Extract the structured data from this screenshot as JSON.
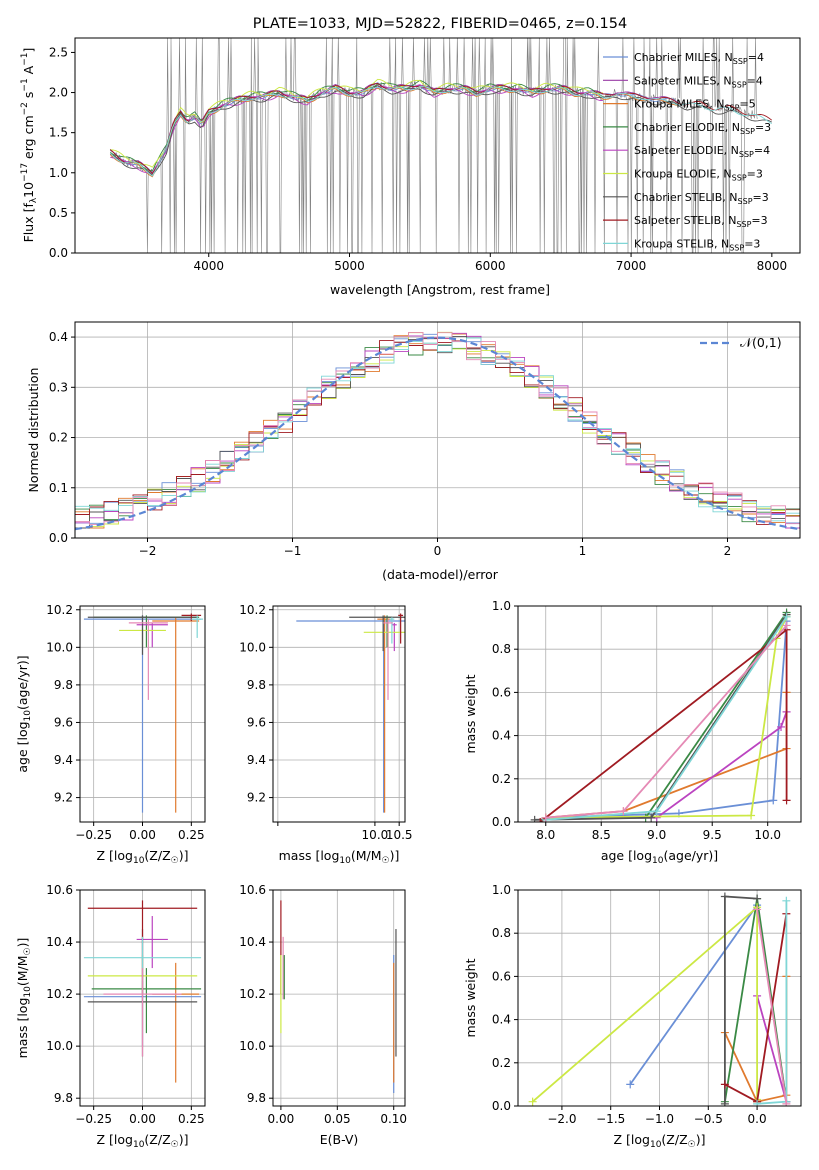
{
  "figure": {
    "title": "PLATE=1033, MJD=52822, FIBERID=0465, z=0.154"
  },
  "chart_data": [
    {
      "id": "spectrum",
      "type": "line",
      "title": "PLATE=1033, MJD=52822, FIBERID=0465, z=0.154",
      "xlabel": "wavelength [Angstrom, rest frame]",
      "ylabel_parts": [
        "Flux [f",
        "λ",
        "10",
        "−17",
        " erg cm",
        "−2",
        " s",
        "−1",
        " A",
        "−1",
        "]"
      ],
      "xlim": [
        3050,
        8200
      ],
      "ylim": [
        0,
        2.68
      ],
      "xticks": [
        4000,
        5000,
        6000,
        7000,
        8000
      ],
      "yticks": [
        0.0,
        0.5,
        1.0,
        1.5,
        2.0,
        2.5
      ],
      "grid": false,
      "legend_position": "top-right",
      "observed_color": "#808080",
      "model_points_x": [
        3300,
        3400,
        3500,
        3550,
        3600,
        3650,
        3700,
        3750,
        3800,
        3850,
        3900,
        3950,
        4000,
        4100,
        4200,
        4300,
        4400,
        4500,
        4600,
        4700,
        4800,
        4900,
        5000,
        5100,
        5200,
        5300,
        5400,
        5500,
        5600,
        5700,
        5800,
        5900,
        6000,
        6100,
        6200,
        6300,
        6400,
        6500,
        6600,
        6700,
        6800,
        6900,
        7000,
        7100,
        7200,
        7300,
        7400,
        7500,
        7600,
        7700,
        7800,
        7900,
        8000
      ],
      "model_base_y": [
        1.25,
        1.15,
        1.1,
        1.05,
        1.0,
        1.15,
        1.3,
        1.6,
        1.75,
        1.65,
        1.7,
        1.6,
        1.75,
        1.85,
        1.9,
        1.95,
        1.95,
        2.0,
        1.95,
        1.9,
        2.0,
        2.05,
        2.0,
        2.0,
        2.1,
        2.05,
        2.05,
        2.1,
        2.0,
        2.05,
        2.05,
        2.0,
        2.05,
        2.05,
        2.05,
        2.0,
        2.05,
        2.05,
        2.0,
        2.0,
        1.95,
        2.0,
        1.95,
        1.95,
        1.9,
        1.9,
        1.85,
        1.85,
        1.8,
        1.8,
        1.75,
        1.7,
        1.65
      ],
      "series": [
        {
          "name": "Chabrier MILES",
          "nssp": "4",
          "color": "#6a8fd6",
          "range": [
            3300,
            7350
          ],
          "offset": 0.0
        },
        {
          "name": "Salpeter MILES",
          "nssp": "4",
          "color": "#9a3da6",
          "range": [
            3300,
            7350
          ],
          "offset": 0.02
        },
        {
          "name": "Kroupa MILES",
          "nssp": "5",
          "color": "#e07a2e",
          "range": [
            3300,
            7350
          ],
          "offset": -0.02
        },
        {
          "name": "Chabrier ELODIE",
          "nssp": "3",
          "color": "#3a8a45",
          "range": [
            3300,
            6800
          ],
          "offset": 0.03
        },
        {
          "name": "Salpeter ELODIE",
          "nssp": "4",
          "color": "#bb44c0",
          "range": [
            3300,
            6800
          ],
          "offset": -0.03
        },
        {
          "name": "Kroupa ELODIE",
          "nssp": "3",
          "color": "#cce844",
          "range": [
            3300,
            6800
          ],
          "offset": 0.04
        },
        {
          "name": "Chabrier STELIB",
          "nssp": "3",
          "color": "#555555",
          "range": [
            3300,
            8000
          ],
          "offset": -0.04
        },
        {
          "name": "Salpeter STELIB",
          "nssp": "3",
          "color": "#a01b22",
          "range": [
            3300,
            8000
          ],
          "offset": 0.01
        },
        {
          "name": "Kroupa STELIB",
          "nssp": "3",
          "color": "#7fd6d6",
          "range": [
            3300,
            8000
          ],
          "offset": -0.01
        }
      ]
    },
    {
      "id": "residuals",
      "type": "bar",
      "xlabel": "(data-model)/error",
      "ylabel": "Normed distribution",
      "xlim": [
        -2.5,
        2.5
      ],
      "ylim": [
        0,
        0.43
      ],
      "xticks": [
        -2,
        -1,
        0,
        1,
        2
      ],
      "yticks": [
        0.0,
        0.1,
        0.2,
        0.3,
        0.4
      ],
      "grid": true,
      "legend_position": "top-right",
      "normal_curve": {
        "name": "𝒩(0,1)",
        "color": "#5b86d4"
      },
      "bin_width": 0.1,
      "series_colors": [
        "#6a8fd6",
        "#e07a2e",
        "#3a8a45",
        "#bb44c0",
        "#cce844",
        "#555555",
        "#a01b22",
        "#7fd6d6",
        "#e58ab5"
      ]
    },
    {
      "id": "age-vs-z",
      "type": "scatter",
      "xlabel_parts": [
        "Z [log",
        "10",
        "(Z/Z",
        "☉",
        ")]"
      ],
      "ylabel_parts": [
        "age  [log",
        "10",
        "(age/yr)]"
      ],
      "xlim": [
        -0.32,
        0.32
      ],
      "ylim": [
        9.07,
        10.22
      ],
      "xticks": [
        -0.25,
        0.0,
        0.25
      ],
      "xtick_labels": [
        "−0.25",
        "0.00",
        "0.25"
      ],
      "yticks": [
        9.2,
        9.4,
        9.6,
        9.8,
        10.0,
        10.2
      ],
      "grid": true,
      "points": [
        {
          "color": "#6a8fd6",
          "x": 0.0,
          "xerr": 0.3,
          "y": 10.15,
          "ylo": 9.12,
          "yhi": 10.17
        },
        {
          "color": "#e07a2e",
          "x": 0.17,
          "xerr": 0.12,
          "y": 10.14,
          "ylo": 9.12,
          "yhi": 10.16
        },
        {
          "color": "#3a8a45",
          "x": 0.02,
          "xerr": 0.27,
          "y": 10.16,
          "ylo": 10.0,
          "yhi": 10.17
        },
        {
          "color": "#bb44c0",
          "x": 0.05,
          "xerr": 0.08,
          "y": 10.12,
          "ylo": 10.0,
          "yhi": 10.13
        },
        {
          "color": "#cce844",
          "x": 0.0,
          "xerr": 0.12,
          "y": 10.09,
          "ylo": 10.0,
          "yhi": 10.1
        },
        {
          "color": "#555555",
          "x": 0.0,
          "xerr": 0.28,
          "y": 10.16,
          "ylo": 9.96,
          "yhi": 10.17
        },
        {
          "color": "#a01b22",
          "x": 0.25,
          "xerr": 0.05,
          "y": 10.17,
          "ylo": 10.14,
          "yhi": 10.18
        },
        {
          "color": "#7fd6d6",
          "x": 0.28,
          "xerr": 0.03,
          "y": 10.15,
          "ylo": 10.05,
          "yhi": 10.17
        },
        {
          "color": "#e58ab5",
          "x": 0.03,
          "xerr": 0.1,
          "y": 10.13,
          "ylo": 9.72,
          "yhi": 10.15
        }
      ]
    },
    {
      "id": "age-vs-mass",
      "type": "scatter",
      "xlabel_parts": [
        "mass [log",
        "10",
        "(M/M",
        "☉",
        ")]"
      ],
      "xlim": [
        7.9,
        10.62
      ],
      "ylim": [
        9.07,
        10.22
      ],
      "xticks": [
        8.0,
        10.0,
        10.5
      ],
      "xtick_labels": [
        "",
        "10.0",
        "10.5"
      ],
      "yticks": [
        9.2,
        9.4,
        9.6,
        9.8,
        10.0,
        10.2
      ],
      "grid": true,
      "points": [
        {
          "color": "#6a8fd6",
          "x": 10.18,
          "xerr": 1.8,
          "y": 10.14,
          "ylo": 9.12,
          "yhi": 10.16
        },
        {
          "color": "#e07a2e",
          "x": 10.2,
          "xerr": 0.15,
          "y": 10.15,
          "ylo": 9.12,
          "yhi": 10.17
        },
        {
          "color": "#3a8a45",
          "x": 10.25,
          "xerr": 0.1,
          "y": 10.16,
          "ylo": 10.0,
          "yhi": 10.17
        },
        {
          "color": "#bb44c0",
          "x": 10.4,
          "xerr": 0.05,
          "y": 10.12,
          "ylo": 9.98,
          "yhi": 10.13
        },
        {
          "color": "#cce844",
          "x": 10.27,
          "xerr": 0.5,
          "y": 10.08,
          "ylo": 10.0,
          "yhi": 10.1
        },
        {
          "color": "#555555",
          "x": 10.17,
          "xerr": 0.7,
          "y": 10.16,
          "ylo": 9.98,
          "yhi": 10.17
        },
        {
          "color": "#a01b22",
          "x": 10.53,
          "xerr": 0.05,
          "y": 10.17,
          "ylo": 10.02,
          "yhi": 10.18
        },
        {
          "color": "#7fd6d6",
          "x": 10.35,
          "xerr": 0.05,
          "y": 10.15,
          "ylo": 10.02,
          "yhi": 10.16
        },
        {
          "color": "#e58ab5",
          "x": 10.27,
          "xerr": 0.1,
          "y": 10.13,
          "ylo": 9.72,
          "yhi": 10.15
        }
      ]
    },
    {
      "id": "weight-vs-age",
      "type": "line",
      "xlabel_parts": [
        "age  [log",
        "10",
        "(age/yr)]"
      ],
      "ylabel": "mass weight",
      "xlim": [
        7.75,
        10.3
      ],
      "ylim": [
        0,
        1.0
      ],
      "xticks": [
        8.0,
        8.5,
        9.0,
        9.5,
        10.0
      ],
      "yticks": [
        0.0,
        0.2,
        0.4,
        0.6,
        0.8,
        1.0
      ],
      "grid": true,
      "series": [
        {
          "color": "#6a8fd6",
          "x": [
            8.0,
            9.2,
            10.05,
            10.17
          ],
          "y": [
            0.02,
            0.04,
            0.1,
            0.93
          ]
        },
        {
          "color": "#e07a2e",
          "x": [
            8.0,
            8.7,
            10.17,
            10.17
          ],
          "y": [
            0.02,
            0.05,
            0.34,
            0.6
          ]
        },
        {
          "color": "#3a8a45",
          "x": [
            8.0,
            8.9,
            10.17
          ],
          "y": [
            0.02,
            0.02,
            0.97
          ]
        },
        {
          "color": "#bb44c0",
          "x": [
            8.0,
            9.0,
            10.12,
            10.17
          ],
          "y": [
            0.02,
            0.02,
            0.44,
            0.51
          ]
        },
        {
          "color": "#cce844",
          "x": [
            8.0,
            9.85,
            10.08,
            10.17
          ],
          "y": [
            0.02,
            0.03,
            0.85,
            0.95
          ]
        },
        {
          "color": "#555555",
          "x": [
            7.9,
            8.95,
            10.17
          ],
          "y": [
            0.01,
            0.02,
            0.96
          ]
        },
        {
          "color": "#a01b22",
          "x": [
            7.95,
            10.17,
            10.17
          ],
          "y": [
            0.0,
            0.89,
            0.1
          ]
        },
        {
          "color": "#7fd6d6",
          "x": [
            8.0,
            9.0,
            10.17
          ],
          "y": [
            0.01,
            0.05,
            0.95
          ]
        },
        {
          "color": "#e58ab5",
          "x": [
            8.0,
            8.7,
            10.17
          ],
          "y": [
            0.02,
            0.05,
            0.91
          ]
        }
      ]
    },
    {
      "id": "mass-vs-z",
      "type": "scatter",
      "xlabel_parts": [
        "Z [log",
        "10",
        "(Z/Z",
        "☉",
        ")]"
      ],
      "ylabel_parts": [
        "mass [log",
        "10",
        "(M/M",
        "☉",
        ")]"
      ],
      "xlim": [
        -0.32,
        0.32
      ],
      "ylim": [
        9.77,
        10.6
      ],
      "xticks": [
        -0.25,
        0.0,
        0.25
      ],
      "xtick_labels": [
        "−0.25",
        "0.00",
        "0.25"
      ],
      "yticks": [
        9.8,
        10.0,
        10.2,
        10.4,
        10.6
      ],
      "grid": true,
      "points": [
        {
          "color": "#6a8fd6",
          "x": 0.0,
          "xerr": 0.3,
          "y": 10.19,
          "ylo": 10.0,
          "yhi": 10.25
        },
        {
          "color": "#e07a2e",
          "x": 0.17,
          "xerr": 0.12,
          "y": 10.2,
          "ylo": 9.86,
          "yhi": 10.32
        },
        {
          "color": "#3a8a45",
          "x": 0.02,
          "xerr": 0.28,
          "y": 10.22,
          "ylo": 10.05,
          "yhi": 10.3
        },
        {
          "color": "#bb44c0",
          "x": 0.05,
          "xerr": 0.08,
          "y": 10.41,
          "ylo": 10.3,
          "yhi": 10.5
        },
        {
          "color": "#cce844",
          "x": 0.0,
          "xerr": 0.28,
          "y": 10.27,
          "ylo": 10.2,
          "yhi": 10.35
        },
        {
          "color": "#555555",
          "x": 0.0,
          "xerr": 0.28,
          "y": 10.17,
          "ylo": 9.96,
          "yhi": 10.45
        },
        {
          "color": "#a01b22",
          "x": 0.0,
          "xerr": 0.28,
          "y": 10.53,
          "ylo": 10.2,
          "yhi": 10.56
        },
        {
          "color": "#7fd6d6",
          "x": 0.0,
          "xerr": 0.3,
          "y": 10.34,
          "ylo": 10.2,
          "yhi": 10.42
        },
        {
          "color": "#e58ab5",
          "x": 0.0,
          "xerr": 0.2,
          "y": 10.2,
          "ylo": 9.96,
          "yhi": 10.3
        }
      ]
    },
    {
      "id": "mass-vs-ebv",
      "type": "scatter",
      "xlabel": "E(B-V)",
      "xlim": [
        -0.007,
        0.11
      ],
      "ylim": [
        9.77,
        10.6
      ],
      "xticks": [
        0.0,
        0.05,
        0.1
      ],
      "xtick_labels": [
        "0.00",
        "0.05",
        "0.10"
      ],
      "yticks": [
        9.8,
        10.0,
        10.2,
        10.4,
        10.6
      ],
      "grid": true,
      "points": [
        {
          "color": "#a01b22",
          "x": 0.0,
          "xerr": 0.0,
          "y": 10.53,
          "ylo": 10.2,
          "yhi": 10.56
        },
        {
          "color": "#cce844",
          "x": 0.0,
          "xerr": 0.0,
          "y": 10.27,
          "ylo": 10.05,
          "yhi": 10.35
        },
        {
          "color": "#e58ab5",
          "x": 0.002,
          "xerr": 0.0,
          "y": 10.3,
          "ylo": 10.18,
          "yhi": 10.42
        },
        {
          "color": "#3a8a45",
          "x": 0.003,
          "xerr": 0.0,
          "y": 10.25,
          "ylo": 10.18,
          "yhi": 10.35
        },
        {
          "color": "#6a8fd6",
          "x": 0.1,
          "xerr": 0.0,
          "y": 10.19,
          "ylo": 9.82,
          "yhi": 10.35
        },
        {
          "color": "#e07a2e",
          "x": 0.1,
          "xerr": 0.0,
          "y": 10.2,
          "ylo": 9.86,
          "yhi": 10.32
        },
        {
          "color": "#555555",
          "x": 0.102,
          "xerr": 0.0,
          "y": 10.2,
          "ylo": 9.96,
          "yhi": 10.45
        }
      ]
    },
    {
      "id": "weight-vs-z",
      "type": "line",
      "xlabel_parts": [
        "Z [log",
        "10",
        "(Z/Z",
        "☉",
        ")]"
      ],
      "ylabel": "mass weight",
      "xlim": [
        -2.45,
        0.45
      ],
      "ylim": [
        0,
        1.0
      ],
      "xticks": [
        -2.0,
        -1.5,
        -1.0,
        -0.5,
        0.0
      ],
      "xtick_labels": [
        "−2.0",
        "−1.5",
        "−1.0",
        "−0.5",
        "0.0"
      ],
      "yticks": [
        0.0,
        0.2,
        0.4,
        0.6,
        0.8,
        1.0
      ],
      "grid": true,
      "series": [
        {
          "color": "#6a8fd6",
          "x": [
            -1.3,
            0.0,
            0.3
          ],
          "y": [
            0.1,
            0.93,
            0.02
          ]
        },
        {
          "color": "#e07a2e",
          "x": [
            -0.33,
            0.0,
            0.3,
            0.3
          ],
          "y": [
            0.34,
            0.02,
            0.05,
            0.6
          ]
        },
        {
          "color": "#3a8a45",
          "x": [
            -0.33,
            0.0,
            0.3
          ],
          "y": [
            0.02,
            0.96,
            0.02
          ]
        },
        {
          "color": "#bb44c0",
          "x": [
            0.0,
            0.3
          ],
          "y": [
            0.51,
            0.02
          ]
        },
        {
          "color": "#cce844",
          "x": [
            -2.3,
            0.0,
            0.0
          ],
          "y": [
            0.02,
            0.92,
            0.03
          ]
        },
        {
          "color": "#555555",
          "x": [
            -0.33,
            -0.33,
            0.0
          ],
          "y": [
            0.01,
            0.97,
            0.96
          ]
        },
        {
          "color": "#a01b22",
          "x": [
            -0.33,
            0.0,
            0.3
          ],
          "y": [
            0.1,
            0.02,
            0.89
          ]
        },
        {
          "color": "#7fd6d6",
          "x": [
            0.0,
            0.3,
            0.3
          ],
          "y": [
            0.01,
            0.02,
            0.95
          ]
        },
        {
          "color": "#e58ab5",
          "x": [
            0.0,
            0.3
          ],
          "y": [
            0.91,
            0.01
          ]
        }
      ]
    }
  ]
}
